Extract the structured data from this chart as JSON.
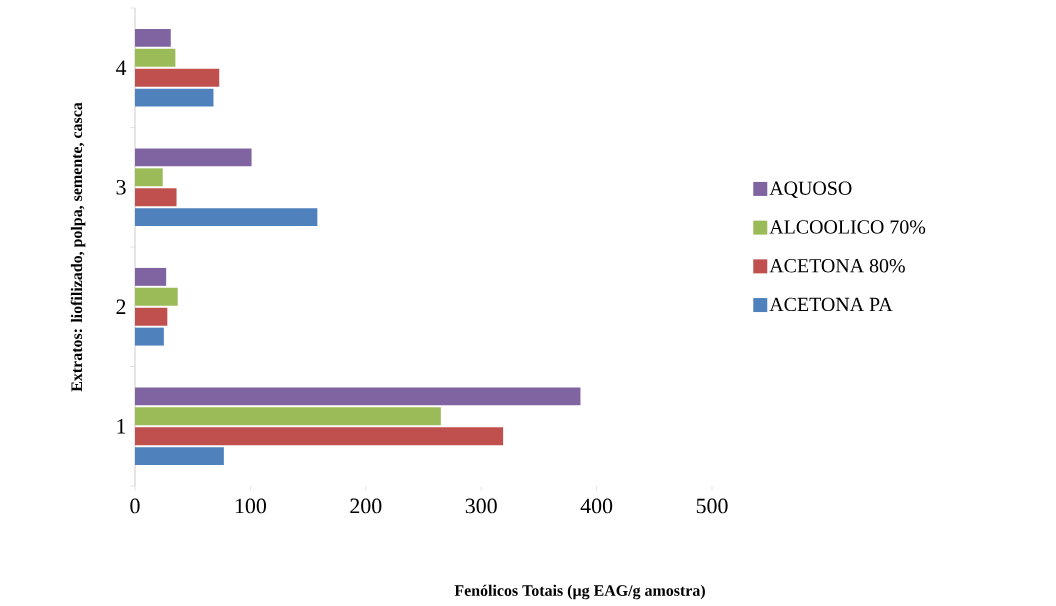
{
  "chart_data": {
    "type": "bar",
    "orientation": "horizontal",
    "xlabel": "Fenólicos Totais (µg EAG/g amostra)",
    "ylabel": "Extratos: liofilizado, polpa, semente, casca",
    "categories": [
      "4",
      "3",
      "2",
      "1"
    ],
    "series": [
      {
        "name": "ACETONA PA",
        "color": "#4f81bd",
        "values": [
          68,
          158,
          25,
          77
        ]
      },
      {
        "name": "ACETONA 80%",
        "color": "#c0504d",
        "values": [
          73,
          36,
          28,
          319
        ]
      },
      {
        "name": "ALCOOLICO 70%",
        "color": "#9bbb59",
        "values": [
          35,
          24,
          37,
          265
        ]
      },
      {
        "name": "AQUOSO",
        "color": "#8064a2",
        "values": [
          31,
          101,
          27,
          386
        ]
      }
    ],
    "xlim": [
      0,
      500
    ],
    "xticks": [
      0,
      100,
      200,
      300,
      400,
      500
    ],
    "grid": false,
    "legend": "right"
  }
}
